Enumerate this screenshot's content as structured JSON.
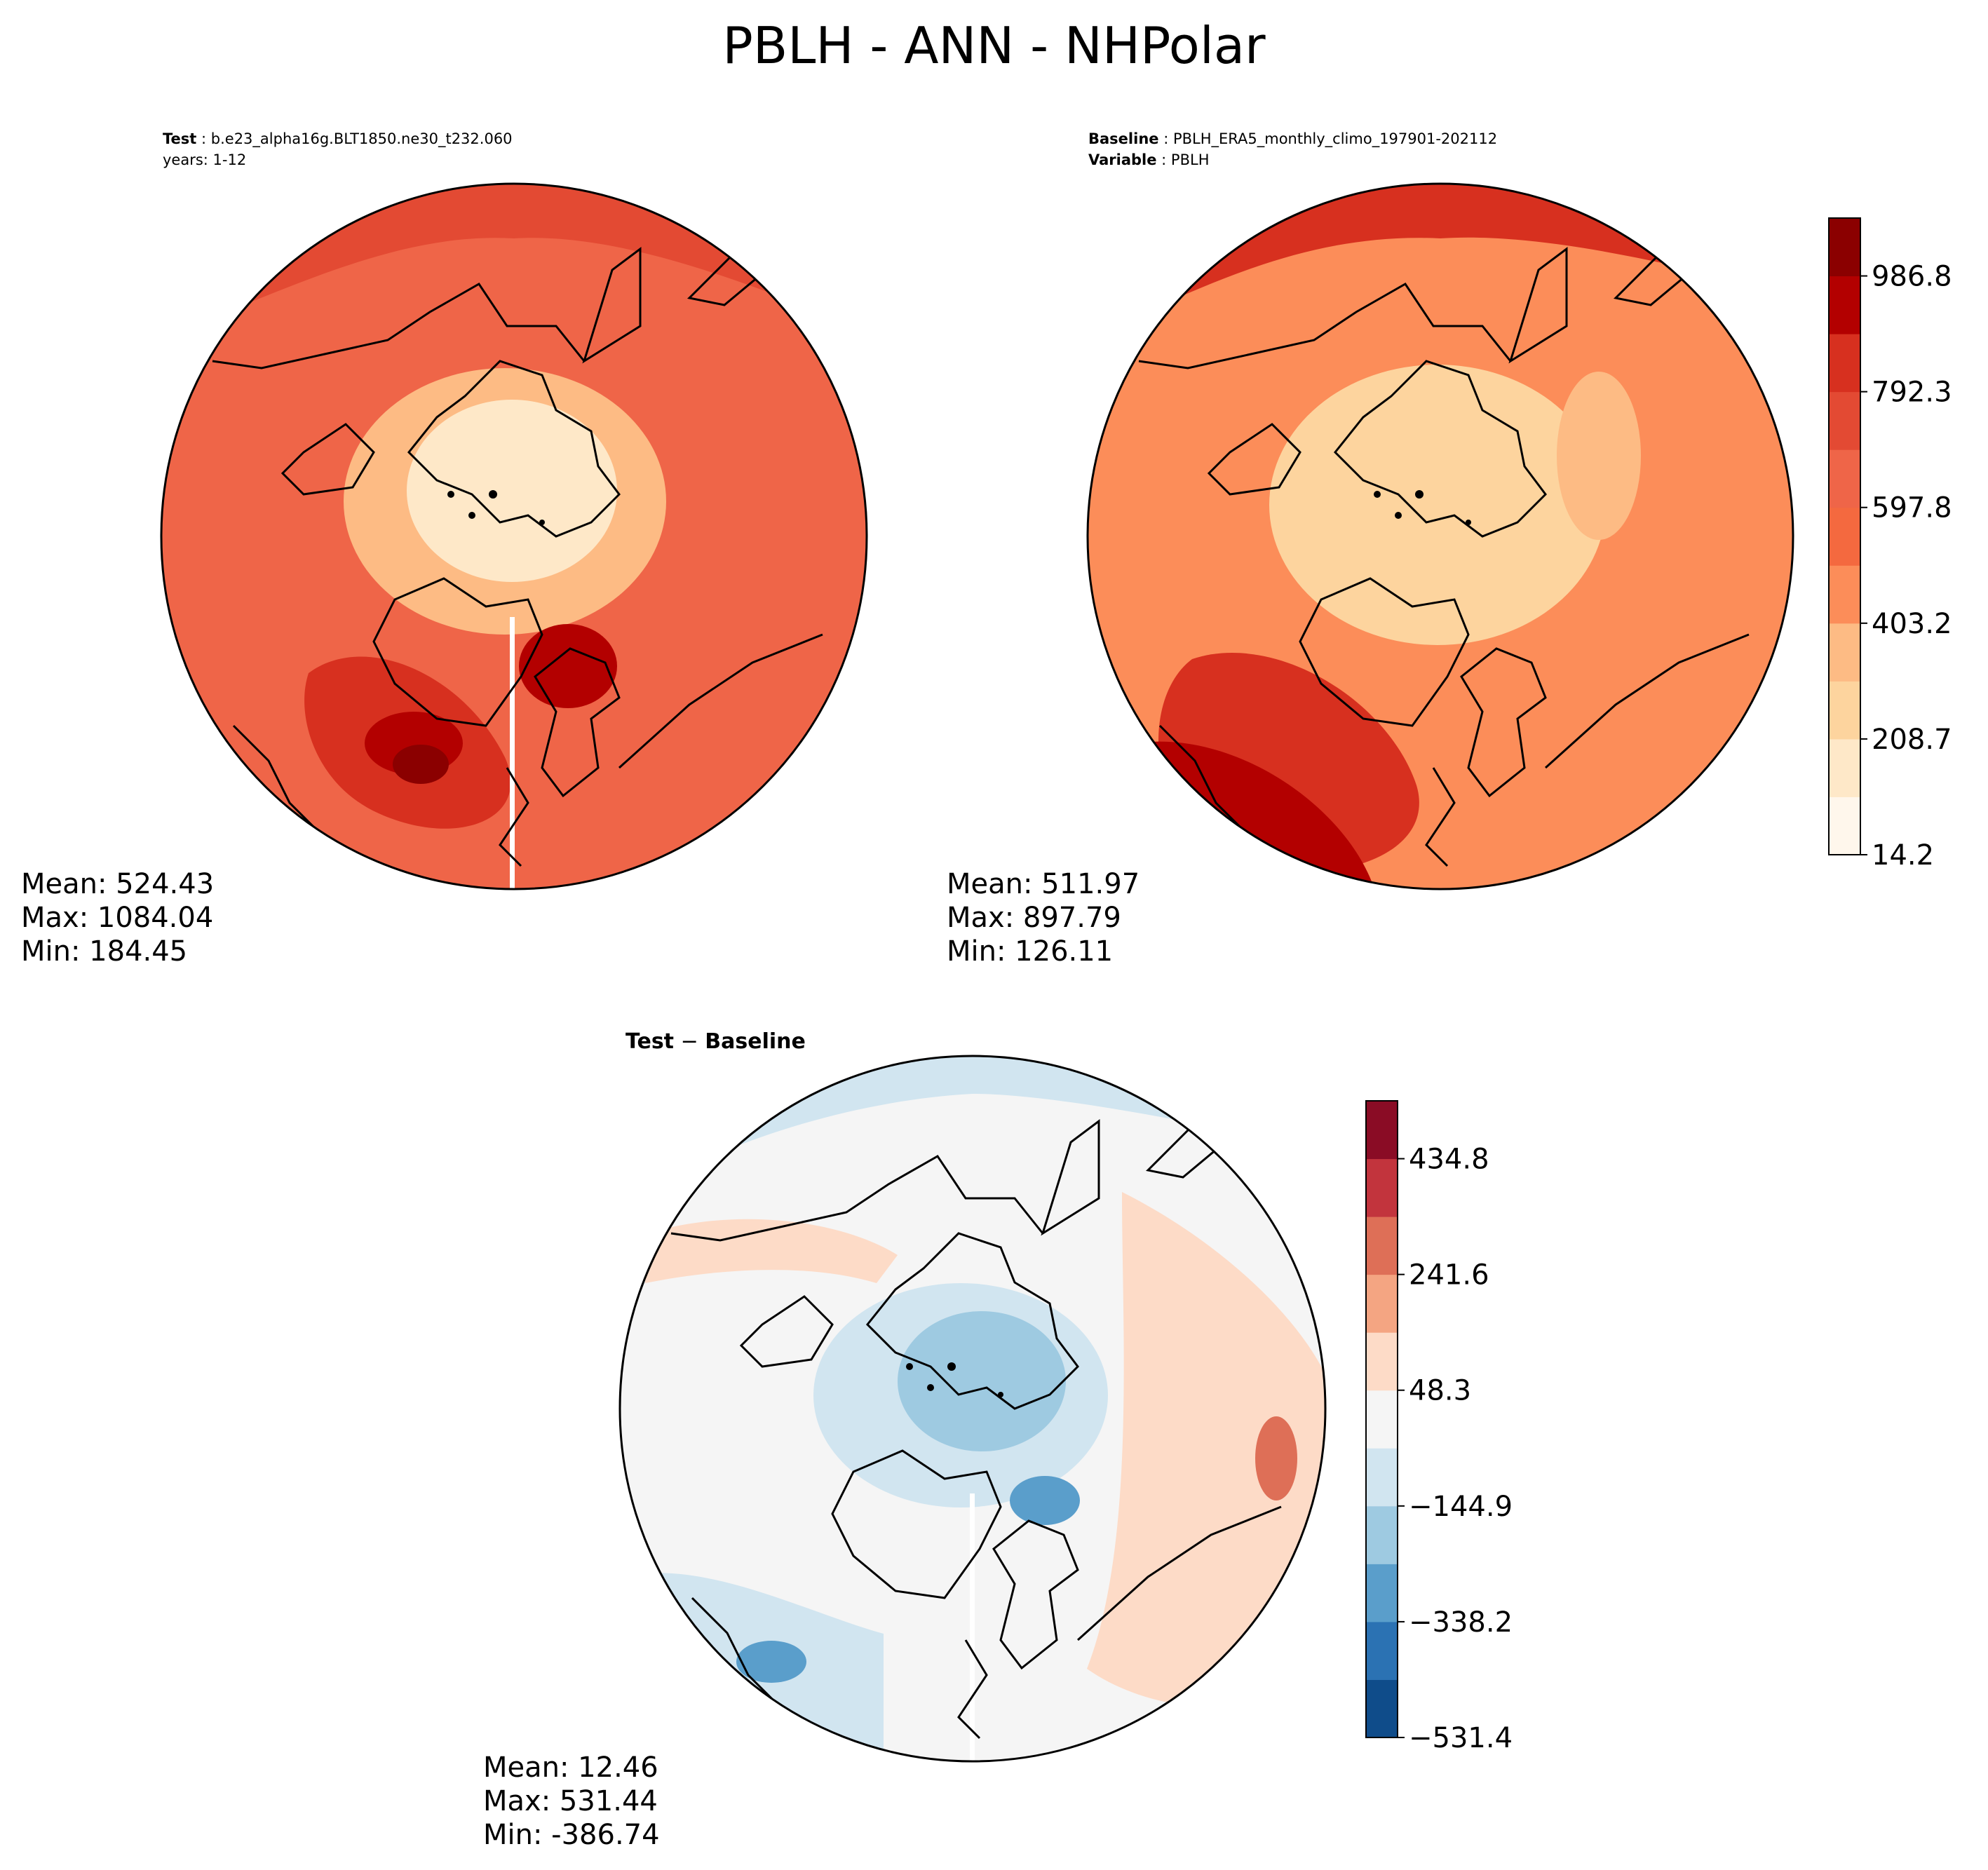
{
  "figure": {
    "title": "PBLH - ANN - NHPolar"
  },
  "panels": {
    "test": {
      "case_label": "Test",
      "case_name": "b.e23_alpha16g.BLT1850.ne30_t232.060",
      "years": "years: 1-12",
      "stats": {
        "mean": "Mean: 524.43",
        "max": "Max: 1084.04",
        "min": "Min: 184.45"
      }
    },
    "baseline": {
      "case_label": "Baseline",
      "case_name": "PBLH_ERA5_monthly_climo_197901-202112",
      "variable_label": "Variable",
      "variable_name": "PBLH",
      "stats": {
        "mean": "Mean: 511.97",
        "max": "Max: 897.79",
        "min": "Min: 126.11"
      }
    },
    "diff": {
      "title_a": "Test",
      "title_op": " − ",
      "title_b": "Baseline",
      "stats": {
        "mean": "Mean: 12.46",
        "max": "Max: 531.44",
        "min": "Min: -386.74"
      }
    }
  },
  "chart_data": [
    {
      "type": "heatmap",
      "projection": "north polar stereographic",
      "panel": "test",
      "statistics": {
        "mean": 524.43,
        "max": 1084.04,
        "min": 184.45
      },
      "colormap": "OrRd-like sequential",
      "colorbar_levels": [
        14.2,
        111.5,
        208.7,
        306.0,
        403.2,
        500.5,
        597.8,
        695.0,
        792.3,
        889.5,
        986.8,
        1084.0
      ]
    },
    {
      "type": "heatmap",
      "projection": "north polar stereographic",
      "panel": "baseline",
      "statistics": {
        "mean": 511.97,
        "max": 897.79,
        "min": 126.11
      },
      "colormap": "OrRd-like sequential",
      "colorbar": {
        "ticks": [
          14.2,
          208.7,
          403.2,
          597.8,
          792.3,
          986.8
        ],
        "tick_labels": [
          "14.2",
          "208.7",
          "403.2",
          "597.8",
          "792.3",
          "986.8"
        ],
        "colors": [
          "#fff7ec",
          "#fee8c8",
          "#fdd49e",
          "#fdbb84",
          "#fc8d59",
          "#f4693f",
          "#ef6548",
          "#e34a33",
          "#d7301f",
          "#b30000",
          "#8b0000"
        ]
      }
    },
    {
      "type": "heatmap",
      "projection": "north polar stereographic",
      "panel": "difference",
      "statistics": {
        "mean": 12.46,
        "max": 531.44,
        "min": -386.74
      },
      "colormap": "RdBu_r diverging",
      "colorbar": {
        "ticks": [
          -531.4,
          -338.2,
          -144.9,
          48.3,
          241.6,
          434.8
        ],
        "tick_labels": [
          "−531.4",
          "−338.2",
          "−144.9",
          "48.3",
          "241.6",
          "434.8"
        ],
        "colors": [
          "#0f4c8a",
          "#2b72b3",
          "#5a9ecb",
          "#9ecae1",
          "#d1e5f0",
          "#f5f5f5",
          "#fddbc7",
          "#f4a582",
          "#de6f57",
          "#c2343d",
          "#8a0c25"
        ]
      }
    }
  ]
}
